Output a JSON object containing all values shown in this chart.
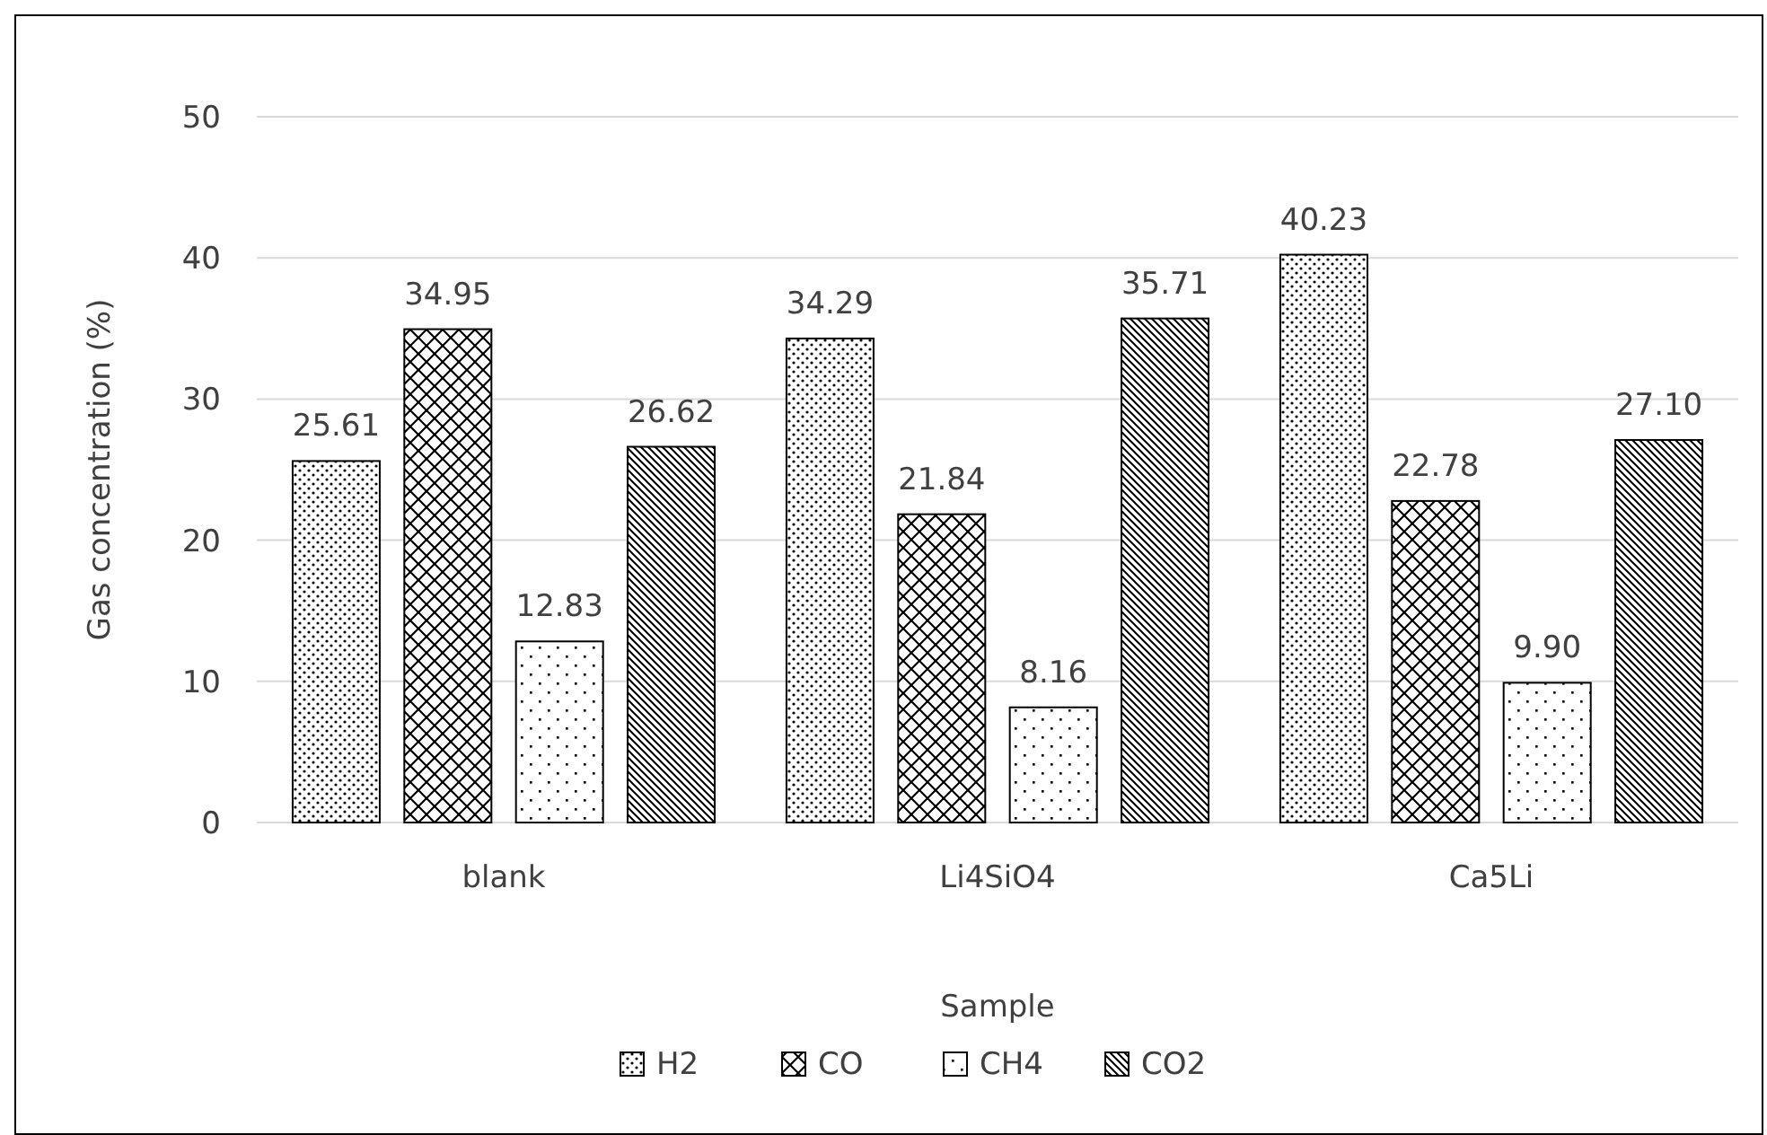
{
  "chart_data": {
    "type": "bar",
    "xlabel": "Sample",
    "ylabel": "Gas concentration (%)",
    "categories": [
      "blank",
      "Li4SiO4",
      "Ca5Li"
    ],
    "series": [
      {
        "name": "H2",
        "color": "#000000",
        "values": [
          25.61,
          34.29,
          40.23
        ],
        "value_labels": [
          "25.61",
          "34.29",
          "40.23"
        ]
      },
      {
        "name": "CO",
        "color": "#000000",
        "values": [
          34.95,
          21.84,
          22.78
        ],
        "value_labels": [
          "34.95",
          "21.84",
          "22.78"
        ]
      },
      {
        "name": "CH4",
        "color": "#000000",
        "values": [
          12.83,
          8.16,
          9.9
        ],
        "value_labels": [
          "12.83",
          "8.16",
          "9.90"
        ]
      },
      {
        "name": "CO2",
        "color": "#000000",
        "values": [
          26.62,
          35.71,
          27.1
        ],
        "value_labels": [
          "26.62",
          "35.71",
          "27.10"
        ]
      }
    ],
    "ylim": [
      0,
      50
    ],
    "yticks": [
      0,
      10,
      20,
      30,
      40,
      50
    ],
    "grid": "y",
    "legend": "bottom"
  }
}
